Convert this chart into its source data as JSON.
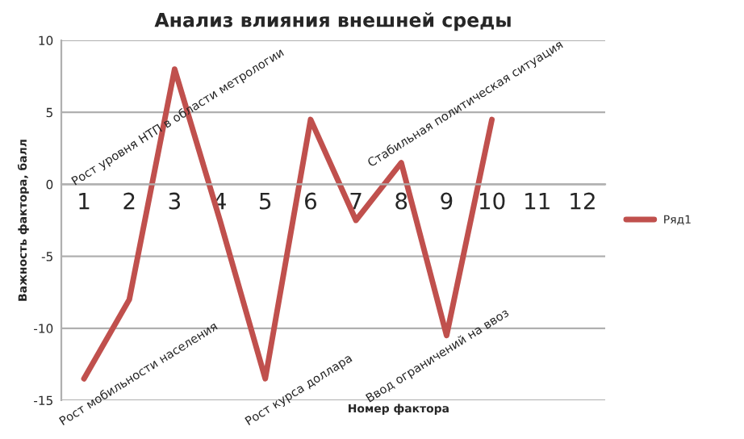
{
  "chart_data": {
    "type": "line",
    "title": "Анализ влияния внешней среды",
    "xlabel": "Номер фактора",
    "ylabel": "Важность фактора, балл",
    "categories": [
      "1",
      "2",
      "3",
      "4",
      "5",
      "6",
      "7",
      "8",
      "9",
      "10",
      "11",
      "12"
    ],
    "series": [
      {
        "name": "Ряд1",
        "color": "#c0504d",
        "values": [
          -13.5,
          -8,
          8,
          -2.5,
          -13.5,
          4.5,
          -2.5,
          1.5,
          -10.5,
          4.5,
          null,
          null
        ]
      }
    ],
    "ylim": [
      -15,
      10
    ],
    "yticks": [
      -15,
      -10,
      -5,
      0,
      5,
      10
    ],
    "grid": "y",
    "legend": "right",
    "marker": "none",
    "line_style": "solid",
    "annotations": [
      {
        "text": "Рост мобильности населения",
        "x": "1",
        "y": -13.5
      },
      {
        "text": "Рост уровня НТП в области метрологии",
        "x": "3",
        "y": 8
      },
      {
        "text": "Рост курса доллара",
        "x": "5",
        "y": -13.5
      },
      {
        "text": "Стабильная политическая ситуация",
        "x": "8",
        "y": 1.5
      },
      {
        "text": "Ввод ограничений на ввоз",
        "x": "9",
        "y": -10.5
      }
    ]
  }
}
